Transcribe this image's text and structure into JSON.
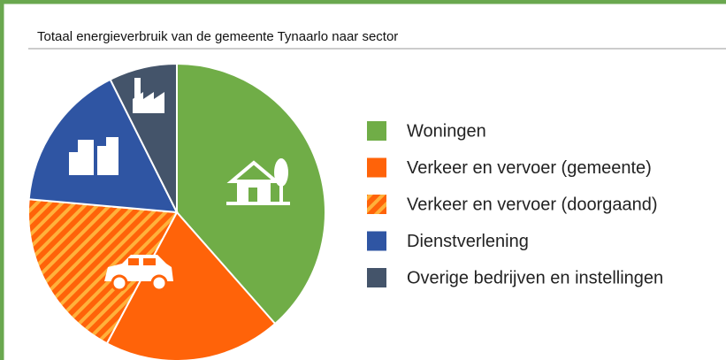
{
  "chart_data": {
    "type": "pie",
    "title": "Totaal energieverbruik van de gemeente Tynaarlo naar sector",
    "categories": [
      "Woningen",
      "Verkeer en vervoer (gemeente)",
      "Verkeer en vervoer (doorgaand)",
      "Dienstverlening",
      "Overige bedrijven en instellingen"
    ],
    "values": [
      38.5,
      19.3,
      18.6,
      16.2,
      7.4
    ],
    "colors": [
      "#70ad47",
      "#ff6309",
      "#ff6309",
      "#2f55a3",
      "#44546a"
    ],
    "hatched": [
      false,
      false,
      true,
      false,
      false
    ],
    "hatch_color": "#ffb13b",
    "legend": "right"
  }
}
